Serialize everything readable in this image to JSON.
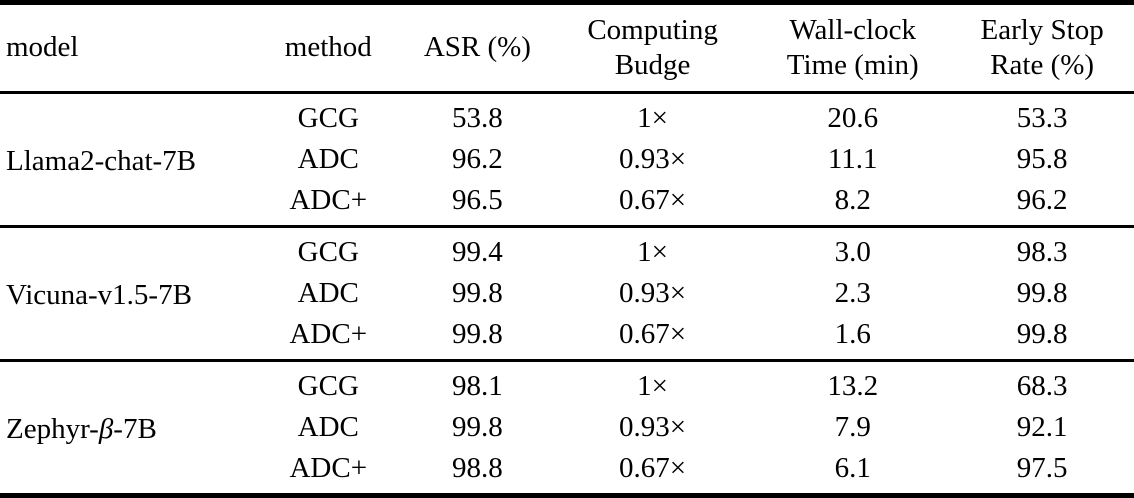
{
  "table": {
    "columns": [
      "model",
      "method",
      "ASR (%)",
      "Computing Budge",
      "Wall-clock Time (min)",
      "Early Stop Rate (%)"
    ],
    "groups": [
      {
        "model": "Llama2-chat-7B",
        "rows": [
          {
            "method": "GCG",
            "asr": "53.8",
            "budget": "1×",
            "wallclock": "20.6",
            "early_stop": "53.3"
          },
          {
            "method": "ADC",
            "asr": "96.2",
            "budget": "0.93×",
            "wallclock": "11.1",
            "early_stop": "95.8"
          },
          {
            "method": "ADC+",
            "asr": "96.5",
            "budget": "0.67×",
            "wallclock": "8.2",
            "early_stop": "96.2"
          }
        ]
      },
      {
        "model": "Vicuna-v1.5-7B",
        "rows": [
          {
            "method": "GCG",
            "asr": "99.4",
            "budget": "1×",
            "wallclock": "3.0",
            "early_stop": "98.3"
          },
          {
            "method": "ADC",
            "asr": "99.8",
            "budget": "0.93×",
            "wallclock": "2.3",
            "early_stop": "99.8"
          },
          {
            "method": "ADC+",
            "asr": "99.8",
            "budget": "0.67×",
            "wallclock": "1.6",
            "early_stop": "99.8"
          }
        ]
      },
      {
        "model": "Zephyr-β-7B",
        "model_parts": {
          "prefix": "Zephyr-",
          "beta": "β",
          "suffix": "-7B"
        },
        "rows": [
          {
            "method": "GCG",
            "asr": "98.1",
            "budget": "1×",
            "wallclock": "13.2",
            "early_stop": "68.3"
          },
          {
            "method": "ADC",
            "asr": "99.8",
            "budget": "0.93×",
            "wallclock": "7.9",
            "early_stop": "92.1"
          },
          {
            "method": "ADC+",
            "asr": "98.8",
            "budget": "0.67×",
            "wallclock": "6.1",
            "early_stop": "97.5"
          }
        ]
      }
    ]
  }
}
